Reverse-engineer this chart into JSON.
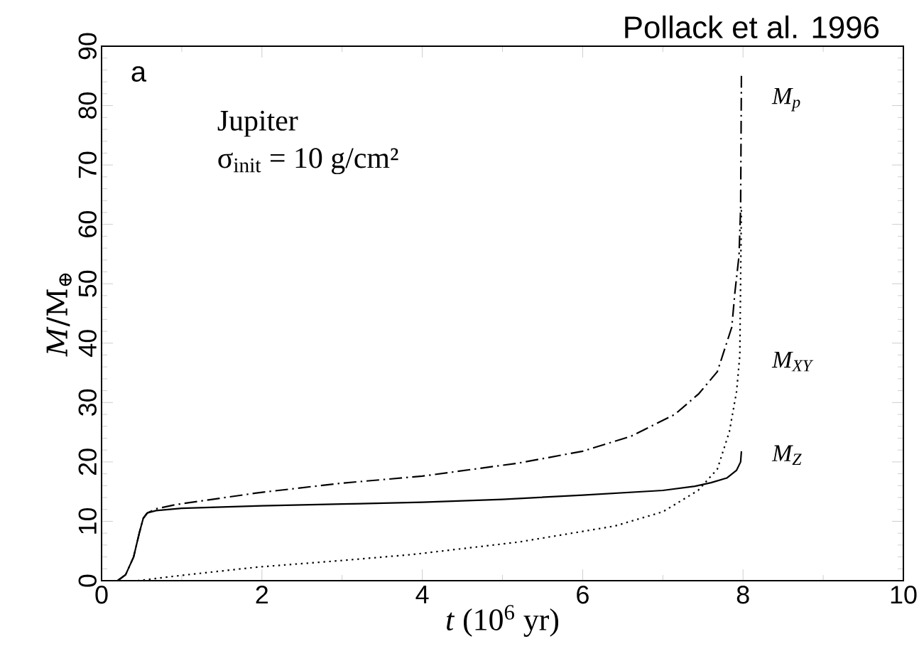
{
  "chart_data": {
    "type": "line",
    "xlabel": "*t* (10$^{6}$ yr)",
    "ylabel": "*M*/M$_{⊕}$",
    "xlim": [
      0,
      10
    ],
    "ylim": [
      0,
      90
    ],
    "xticks": [
      0,
      2,
      4,
      6,
      8,
      10
    ],
    "yticks": [
      0,
      10,
      20,
      30,
      40,
      50,
      60,
      70,
      80,
      90
    ],
    "marker": "none",
    "annotations": [
      "Pollack et al. 1996",
      "a",
      "Jupiter",
      "σ$_{init}$ = 10 g/cm²"
    ],
    "series": [
      {
        "name": "M$_{p}$",
        "color": "#000000",
        "line_style": "dashdot",
        "x": [
          0.2,
          0.3,
          0.4,
          0.47,
          0.52,
          0.57,
          0.68,
          0.92,
          1.95,
          2.98,
          4,
          5.2,
          6,
          6.6,
          7.15,
          7.45,
          7.68,
          7.86,
          7.9,
          7.95,
          7.97,
          7.98
        ],
        "values": [
          0,
          1,
          4,
          8,
          10.5,
          11.4,
          12.1,
          12.8,
          14.8,
          16.4,
          17.6,
          19.8,
          21.8,
          24.3,
          28,
          31.5,
          35.2,
          42.7,
          48.7,
          54.7,
          62.7,
          85
        ]
      },
      {
        "name": "M$_{XY}$",
        "color": "#000000",
        "line_style": "dotted",
        "x": [
          0.45,
          1,
          1.95,
          3,
          3.87,
          5.2,
          6.4,
          7,
          7.44,
          7.68,
          7.83,
          7.92,
          7.96,
          7.97,
          7.98
        ],
        "values": [
          0,
          0.9,
          2.3,
          3.4,
          4.4,
          6.5,
          9.2,
          11.6,
          15.2,
          18.8,
          25.1,
          31.9,
          37.9,
          50.7,
          63
        ]
      },
      {
        "name": "M$_{Z}$",
        "color": "#000000",
        "line_style": "solid",
        "x": [
          0.2,
          0.3,
          0.4,
          0.47,
          0.52,
          0.57,
          0.68,
          1,
          2,
          3,
          4,
          5,
          6,
          7,
          7.4,
          7.6,
          7.8,
          7.92,
          7.97,
          7.98
        ],
        "values": [
          0,
          1,
          4,
          8,
          10.5,
          11.4,
          11.8,
          12.2,
          12.6,
          12.9,
          13.2,
          13.7,
          14.4,
          15.2,
          15.9,
          16.5,
          17.3,
          18.6,
          20,
          21.8
        ]
      }
    ]
  }
}
